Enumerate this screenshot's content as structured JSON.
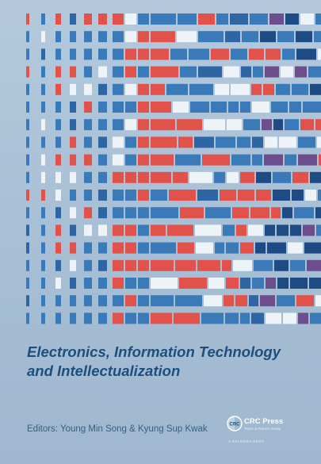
{
  "book": {
    "title_line1": "Electronics, Information Technology",
    "title_line2": "and Intellectualization",
    "editors": "Editors: Young Min Song & Kyung Sup Kwak"
  },
  "publisher": {
    "name": "CRC Press",
    "tagline": "Taylor & Francis Group",
    "imprint": "A BALKEMA BOOK",
    "logo_text": "CRC",
    "logo_icon": "crc-press-logo-icon"
  },
  "colors": {
    "background": "#a9c0d6",
    "blue": "#3a7ab8",
    "dark_blue": "#2d66a3",
    "navy": "#1f4b85",
    "red": "#e1524a",
    "purple": "#6d4d8c",
    "white": "#eef3f8",
    "title": "#1d4f7d"
  }
}
